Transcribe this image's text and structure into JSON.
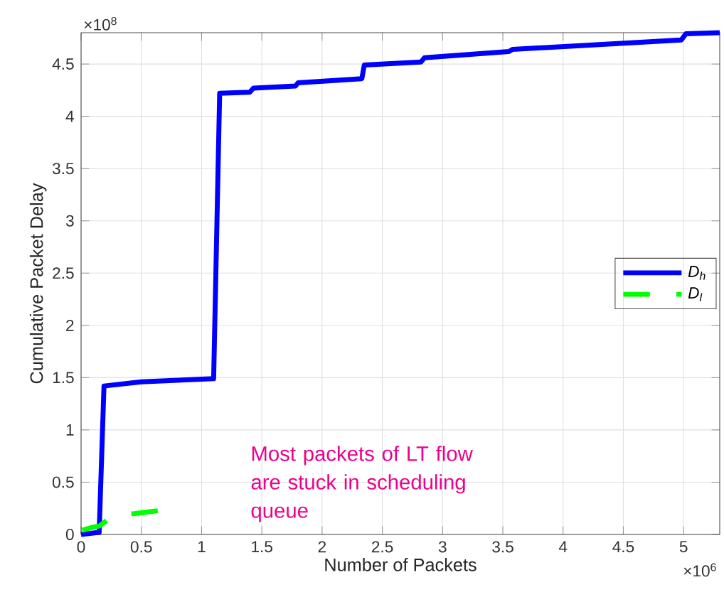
{
  "chart_data": {
    "type": "line",
    "xlabel": "Number of Packets",
    "ylabel": "Cumulative Packet Delay",
    "xlim": [
      0,
      5.3
    ],
    "ylim": [
      0,
      4.8
    ],
    "xticks": [
      0,
      0.5,
      1,
      1.5,
      2,
      2.5,
      3,
      3.5,
      4,
      4.5,
      5
    ],
    "yticks": [
      0,
      0.5,
      1,
      1.5,
      2,
      2.5,
      3,
      3.5,
      4,
      4.5
    ],
    "grid": true,
    "legend": "right",
    "series": [
      {
        "name": "D$_{h}$",
        "color": "#0000ff",
        "line_style": "solid",
        "x": [
          0,
          0.15,
          0.19,
          0.5,
          1.1,
          1.15,
          1.4,
          1.43,
          1.78,
          1.8,
          2.33,
          2.35,
          2.82,
          2.85,
          3.55,
          3.58,
          4.98,
          5.02,
          5.3
        ],
        "values": [
          0,
          0.02,
          1.42,
          1.46,
          1.49,
          4.22,
          4.23,
          4.27,
          4.29,
          4.32,
          4.36,
          4.49,
          4.52,
          4.56,
          4.62,
          4.64,
          4.73,
          4.79,
          4.8
        ]
      },
      {
        "name": "D$_{l}$",
        "color": "#00ff00",
        "line_style": "dashed",
        "x": [
          0.01,
          0.1,
          0.15,
          0.27,
          0.45,
          0.66
        ],
        "values": [
          0.04,
          0.07,
          0.08,
          0.18,
          0.2,
          0.23
        ]
      }
    ],
    "annotations": [
      "×10$^{8}$",
      "×10$^{6}$",
      "Most packets of LT flow are stuck in scheduling queue"
    ]
  }
}
